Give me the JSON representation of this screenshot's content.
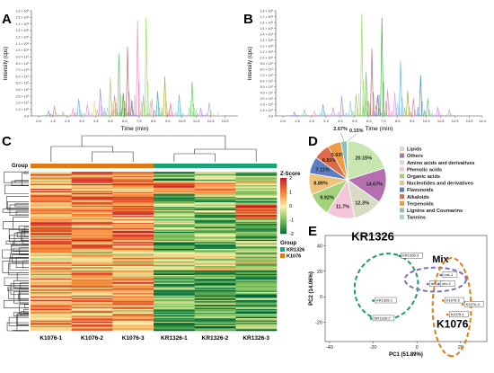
{
  "panels": {
    "A": "A",
    "B": "B",
    "C": "C",
    "D": "D",
    "E": "E"
  },
  "chart_data": [
    {
      "panel": "A",
      "type": "line",
      "xlabel": "Time (min)",
      "ylabel": "Intensity (cps)",
      "yticks": [
        "0.0",
        "1.0 × 10⁷",
        "2.0 × 10⁷",
        "3.0 × 10⁷",
        "4.0 × 10⁷",
        "5.0 × 10⁷",
        "6.0 × 10⁷",
        "7.0 × 10⁷",
        "8.0 × 10⁷",
        "9.0 × 10⁷",
        "1.0 × 10⁸",
        "1.1 × 10⁸",
        "1.2 × 10⁸",
        "1.3 × 10⁸",
        "1.4 × 10⁸",
        "1.5 × 10⁸",
        "1.6 × 10⁸"
      ],
      "xticks": [
        "0.5",
        "1.5",
        "2.5",
        "3.5",
        "4.5",
        "5.5",
        "6.5",
        "7.5",
        "8.5",
        "9.5",
        "10.5",
        "11.5",
        "12.5",
        "13.5"
      ],
      "xlim": [
        0,
        14.4
      ],
      "ylim": [
        0,
        160000000.0
      ],
      "peaks": [
        {
          "x": 1.2,
          "y": 8000000.0,
          "c": "#7b8bd6"
        },
        {
          "x": 1.6,
          "y": 15000000.0,
          "c": "#d88"
        },
        {
          "x": 2.2,
          "y": 6000000.0,
          "c": "#8c8"
        },
        {
          "x": 2.9,
          "y": 12000000.0,
          "c": "#e9a"
        },
        {
          "x": 3.3,
          "y": 26000000.0,
          "c": "#6ac"
        },
        {
          "x": 3.9,
          "y": 18000000.0,
          "c": "#c9c"
        },
        {
          "x": 4.4,
          "y": 24000000.0,
          "c": "#dd8"
        },
        {
          "x": 4.8,
          "y": 42000000.0,
          "c": "#a8d"
        },
        {
          "x": 5.1,
          "y": 12000000.0,
          "c": "#8cd"
        },
        {
          "x": 5.5,
          "y": 58000000.0,
          "c": "#9c6"
        },
        {
          "x": 5.8,
          "y": 32000000.0,
          "c": "#e88"
        },
        {
          "x": 6.1,
          "y": 95000000.0,
          "c": "#6b6"
        },
        {
          "x": 6.4,
          "y": 35000000.0,
          "c": "#3a3"
        },
        {
          "x": 6.7,
          "y": 105000000.0,
          "c": "#b66"
        },
        {
          "x": 7.0,
          "y": 24000000.0,
          "c": "#77c"
        },
        {
          "x": 7.4,
          "y": 145000000.0,
          "c": "#e8b"
        },
        {
          "x": 7.8,
          "y": 30000000.0,
          "c": "#9c9"
        },
        {
          "x": 8.0,
          "y": 150000000.0,
          "c": "#9d5"
        },
        {
          "x": 8.4,
          "y": 26000000.0,
          "c": "#d9d"
        },
        {
          "x": 8.8,
          "y": 38000000.0,
          "c": "#4a9"
        },
        {
          "x": 9.3,
          "y": 60000000.0,
          "c": "#aa3"
        },
        {
          "x": 9.7,
          "y": 20000000.0,
          "c": "#d7a"
        },
        {
          "x": 10.3,
          "y": 33000000.0,
          "c": "#5bd"
        },
        {
          "x": 11.2,
          "y": 52000000.0,
          "c": "#5c5"
        },
        {
          "x": 11.8,
          "y": 12000000.0,
          "c": "#c8e"
        },
        {
          "x": 12.4,
          "y": 21000000.0,
          "c": "#aaa"
        },
        {
          "x": 13.0,
          "y": 5000000.0,
          "c": "#ddb"
        }
      ]
    },
    {
      "panel": "B",
      "type": "line",
      "xlabel": "Time (min)",
      "ylabel": "Intensity (cps)",
      "yticks": [
        "0.0",
        "1.0 × 10⁷",
        "2.0 × 10⁷",
        "3.0 × 10⁷",
        "4.0 × 10⁷",
        "5.0 × 10⁷",
        "6.0 × 10⁷",
        "7.0 × 10⁷",
        "8.0 × 10⁷",
        "9.0 × 10⁷",
        "1.0 × 10⁸",
        "1.1 × 10⁸",
        "1.2 × 10⁸",
        "1.3 × 10⁸",
        "1.4 × 10⁸",
        "1.5 × 10⁸",
        "1.6 × 10⁸",
        "1.7 × 10⁸",
        "1.8 × 10⁸"
      ],
      "xticks": [
        "0.5",
        "1.5",
        "2.5",
        "3.5",
        "4.5",
        "5.5",
        "6.5",
        "7.5",
        "8.5",
        "9.5",
        "10.5",
        "11.5",
        "12.5",
        "13.5",
        "14.4"
      ],
      "xlim": [
        0,
        14.4
      ],
      "ylim": [
        0,
        180000000.0
      ],
      "peaks": [
        {
          "x": 1.3,
          "y": 6000000.0,
          "c": "#7b8bd6"
        },
        {
          "x": 2.0,
          "y": 11000000.0,
          "c": "#8c8"
        },
        {
          "x": 2.7,
          "y": 8000000.0,
          "c": "#e9a"
        },
        {
          "x": 3.3,
          "y": 20000000.0,
          "c": "#6ac"
        },
        {
          "x": 4.0,
          "y": 15000000.0,
          "c": "#c9c"
        },
        {
          "x": 4.6,
          "y": 34000000.0,
          "c": "#a8d"
        },
        {
          "x": 5.2,
          "y": 26000000.0,
          "c": "#8cd"
        },
        {
          "x": 5.6,
          "y": 37000000.0,
          "c": "#9c6"
        },
        {
          "x": 6.0,
          "y": 175000000.0,
          "c": "#9d5"
        },
        {
          "x": 6.3,
          "y": 75000000.0,
          "c": "#6b6"
        },
        {
          "x": 6.7,
          "y": 115000000.0,
          "c": "#b66"
        },
        {
          "x": 7.1,
          "y": 36000000.0,
          "c": "#77c"
        },
        {
          "x": 7.4,
          "y": 168000000.0,
          "c": "#4a4"
        },
        {
          "x": 7.8,
          "y": 46000000.0,
          "c": "#e8b"
        },
        {
          "x": 8.3,
          "y": 40000000.0,
          "c": "#d9d"
        },
        {
          "x": 8.7,
          "y": 95000000.0,
          "c": "#5bd"
        },
        {
          "x": 9.2,
          "y": 44000000.0,
          "c": "#aa3"
        },
        {
          "x": 9.6,
          "y": 30000000.0,
          "c": "#d7a"
        },
        {
          "x": 10.1,
          "y": 70000000.0,
          "c": "#48c"
        },
        {
          "x": 10.6,
          "y": 30000000.0,
          "c": "#5c5"
        },
        {
          "x": 11.3,
          "y": 15000000.0,
          "c": "#c8e"
        },
        {
          "x": 12.1,
          "y": 11000000.0,
          "c": "#aaa"
        }
      ]
    },
    {
      "panel": "C",
      "type": "heatmap",
      "columns": [
        "K1076-1",
        "K1076-2",
        "K1076-3",
        "KR1326-1",
        "KR1326-2",
        "KR1326-3"
      ],
      "column_groups": [
        "K1076",
        "K1076",
        "K1076",
        "KR1326",
        "KR1326",
        "KR1326"
      ],
      "group_label": "Group",
      "zscore_title": "Z-Score",
      "zscore_ticks": [
        "2",
        "1",
        "0",
        "-1",
        "-2"
      ],
      "zlim": [
        -2,
        2
      ],
      "legend_title": "Group",
      "legend_groups": [
        {
          "name": "KR1326",
          "color": "#1aa37a"
        },
        {
          "name": "K1076",
          "color": "#e07a18"
        }
      ],
      "row_count": 140
    },
    {
      "panel": "D",
      "type": "pie",
      "slices": [
        {
          "name": "Lipids",
          "value": 20.15,
          "label": "20.15%",
          "color": "#c8e6b0"
        },
        {
          "name": "Others",
          "value": 14.67,
          "label": "14.67%",
          "color": "#b36fb0"
        },
        {
          "name": "Amino acids and derivatives",
          "value": 12.3,
          "label": "12.3%",
          "color": "#d8dcc4"
        },
        {
          "name": "Phenolic acids",
          "value": 11.7,
          "label": "11.7%",
          "color": "#f4c6d8"
        },
        {
          "name": "Organic acids",
          "value": 9.92,
          "label": "9.92%",
          "color": "#a2d27a"
        },
        {
          "name": "Nucleotides and derivatives",
          "value": 8.89,
          "label": "8.89%",
          "color": "#f0c27a"
        },
        {
          "name": "Flavonoids",
          "value": 7.11,
          "label": "7.11%",
          "color": "#5b7fc2"
        },
        {
          "name": "Alkaloids",
          "value": 6.81,
          "label": "6.81%",
          "color": "#e06a48"
        },
        {
          "name": "Terpenoids",
          "value": 5.63,
          "label": "5.63%",
          "color": "#f09a42"
        },
        {
          "name": "Lignins and Coumarins",
          "value": 2.67,
          "label": "2.67%",
          "color": "#88c2b8"
        },
        {
          "name": "Tannins",
          "value": 0.15,
          "label": "0.15%",
          "color": "#a3d7e8"
        }
      ]
    },
    {
      "panel": "E",
      "type": "scatter",
      "xlabel": "PC1 (51.89%)",
      "ylabel": "PC2 (14.06%)",
      "xlim": [
        -42,
        32
      ],
      "ylim": [
        -35,
        48
      ],
      "xticks": [
        "-40",
        "-20",
        "0",
        "20"
      ],
      "xtick_values": [
        -40,
        -20,
        0,
        20
      ],
      "yticks": [
        "-20",
        "0",
        "20",
        "40"
      ],
      "ytick_values": [
        -20,
        0,
        20,
        40
      ],
      "groups": [
        {
          "name": "KR1326",
          "color": "#1f9a68",
          "points": [
            {
              "label": "KR1326-3",
              "x": -8,
              "y": 32
            },
            {
              "label": "KR1326-1",
              "x": -20,
              "y": -3
            },
            {
              "label": "KR1326-2",
              "x": -21,
              "y": -17
            }
          ]
        },
        {
          "name": "Mix",
          "color": "#7a6fc2",
          "points": [
            {
              "label": "mix-1",
              "x": 11,
              "y": 17
            },
            {
              "label": "mix-3",
              "x": 5,
              "y": 10
            },
            {
              "label": "mix-2",
              "x": 10,
              "y": 10
            }
          ]
        },
        {
          "name": "K1076",
          "color": "#e07a18",
          "points": [
            {
              "label": "K1076-2",
              "x": 12,
              "y": -3
            },
            {
              "label": "K1076-3",
              "x": 21,
              "y": -6
            },
            {
              "label": "K1076-1",
              "x": 14,
              "y": -14
            }
          ]
        }
      ]
    }
  ]
}
